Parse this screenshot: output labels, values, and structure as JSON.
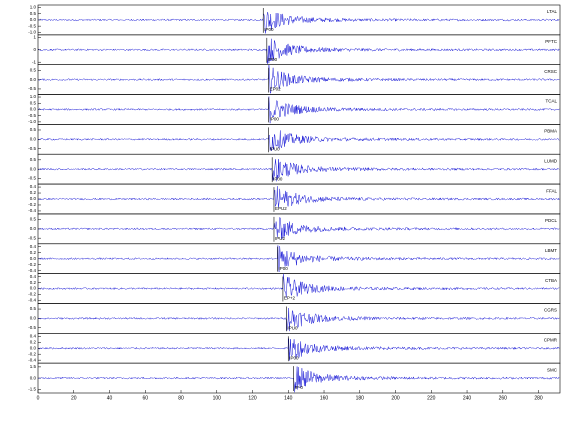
{
  "chart_data": {
    "type": "seismogram",
    "xlim": [
      0,
      292
    ],
    "xticks": [
      0,
      20,
      40,
      60,
      80,
      100,
      120,
      140,
      160,
      180,
      200,
      220,
      240,
      260,
      280
    ],
    "color": "#1a1ad6",
    "panels": [
      {
        "station": "LTAL",
        "phase": "IP00",
        "pick": 126,
        "ylim": [
          -1.2,
          1.2
        ],
        "yticks": [
          {
            "value": 1,
            "label": "1.0"
          },
          0.5,
          {
            "value": 0,
            "label": "0.0"
          },
          -0.5,
          {
            "value": -1,
            "label": "-1.0"
          }
        ]
      },
      {
        "station": "PFTC",
        "phase": "IP00",
        "pick": 128,
        "ylim": [
          -1.2,
          1.2
        ],
        "yticks": [
          1,
          {
            "value": 0,
            "label": "0"
          },
          -1
        ]
      },
      {
        "station": "CRSC",
        "phase": "EP02",
        "pick": 129,
        "ylim": [
          -0.8,
          0.8
        ],
        "yticks": [
          0.5,
          {
            "value": 0,
            "label": "0.0"
          },
          -0.5
        ]
      },
      {
        "station": "TCAL",
        "phase": "IP00",
        "pick": 129,
        "ylim": [
          -1.2,
          1.2
        ],
        "yticks": [
          {
            "value": 1,
            "label": "1.0"
          },
          0.5,
          {
            "value": 0,
            "label": "0.0"
          },
          -0.5,
          {
            "value": -1,
            "label": "-1.0"
          }
        ]
      },
      {
        "station": "PBMA",
        "phase": "IPU0",
        "pick": 129,
        "ylim": [
          -0.8,
          0.8
        ],
        "yticks": [
          0.5,
          {
            "value": 0,
            "label": "0.0"
          },
          -0.5
        ]
      },
      {
        "station": "LUMD",
        "phase": "IP00",
        "pick": 131,
        "ylim": [
          -0.8,
          0.8
        ],
        "yticks": [
          0.5,
          {
            "value": 0,
            "label": "0.0"
          },
          -0.5
        ]
      },
      {
        "station": "FFAL",
        "phase": "EPU2",
        "pick": 132,
        "ylim": [
          -0.5,
          0.5
        ],
        "yticks": [
          0.4,
          0.2,
          {
            "value": 0,
            "label": "0.0"
          },
          -0.2,
          -0.4
        ]
      },
      {
        "station": "PDCL",
        "phase": "IPU2",
        "pick": 132,
        "ylim": [
          -0.8,
          0.8
        ],
        "yticks": [
          0.5,
          {
            "value": 0,
            "label": "0.0"
          },
          -0.5
        ]
      },
      {
        "station": "LBMT",
        "phase": "IP00",
        "pick": 134,
        "ylim": [
          -0.5,
          0.5
        ],
        "yticks": [
          0.4,
          0.2,
          {
            "value": 0,
            "label": "0.0"
          },
          -0.2,
          -0.4
        ]
      },
      {
        "station": "CTBA",
        "phase": "EP+2",
        "pick": 137,
        "ylim": [
          -0.5,
          0.5
        ],
        "yticks": [
          0.4,
          0.2,
          {
            "value": 0,
            "label": "0.0"
          },
          -0.2,
          -0.4
        ]
      },
      {
        "station": "CGRS",
        "phase": "IPU0",
        "pick": 139,
        "ylim": [
          -0.8,
          0.8
        ],
        "yticks": [
          0.5,
          {
            "value": 0,
            "label": "0.0"
          },
          -0.5
        ]
      },
      {
        "station": "CPMR",
        "phase": "IP00",
        "pick": 140,
        "ylim": [
          -0.5,
          0.5
        ],
        "yticks": [
          0.4,
          0.2,
          {
            "value": 0,
            "label": "0.0"
          },
          -0.2,
          -0.4
        ]
      },
      {
        "station": "SMC",
        "phase": "IP-0",
        "pick": 143,
        "ylim": [
          -2,
          2
        ],
        "yticks": [
          1.5,
          {
            "value": 0,
            "label": "0.0"
          },
          -1.5
        ]
      }
    ]
  }
}
